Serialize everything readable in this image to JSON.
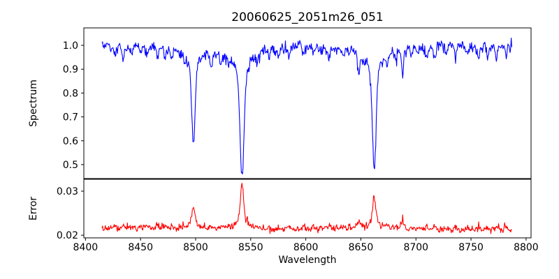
{
  "figure": {
    "title": "20060625_2051m26_051",
    "background": "#ffffff",
    "text_color": "#000000"
  },
  "chart_data": {
    "type": "line",
    "title": "20060625_2051m26_051",
    "xlabel": "Wavelength",
    "xlim": [
      8398.5,
      8804.5
    ],
    "xticks": [
      8400,
      8450,
      8500,
      8550,
      8600,
      8650,
      8700,
      8750,
      8800
    ],
    "x_data_range": [
      8415,
      8787
    ],
    "sample_step_angstrom": 0.5,
    "grid": false,
    "legend": "none",
    "panels": [
      {
        "name": "spectrum",
        "ylabel": "Spectrum",
        "color": "#0000ff",
        "ylim": [
          0.4415,
          1.0731
        ],
        "yticks": [
          0.5,
          0.6,
          0.7,
          0.8,
          0.9,
          1.0
        ],
        "continuum_level": 1.0,
        "noise_sigma": 0.01
      },
      {
        "name": "error",
        "ylabel": "Error",
        "color": "#ff0000",
        "ylim": [
          0.0194,
          0.0327
        ],
        "yticks": [
          0.02,
          0.03
        ],
        "baseline_level": 0.0213,
        "noise_sigma": 0.00035
      }
    ],
    "absorption_lines": [
      {
        "wavelength": 8498.0,
        "depth": 0.405,
        "core_width": 1.5,
        "wing_width": 7,
        "min_flux": 0.595,
        "error_peak_height": 0.0053,
        "error_peak_value": 0.0266
      },
      {
        "wavelength": 8542.1,
        "depth": 0.545,
        "core_width": 1.8,
        "wing_width": 9,
        "min_flux": 0.455,
        "error_peak_height": 0.0106,
        "error_peak_value": 0.0319
      },
      {
        "wavelength": 8662.1,
        "depth": 0.51,
        "core_width": 1.6,
        "wing_width": 8,
        "min_flux": 0.49,
        "error_peak_height": 0.0075,
        "error_peak_value": 0.0288
      }
    ],
    "minor_lines": [
      [
        8427,
        0.045
      ],
      [
        8434,
        0.055
      ],
      [
        8442,
        0.035
      ],
      [
        8450,
        0.03
      ],
      [
        8456,
        0.04
      ],
      [
        8465,
        0.055
      ],
      [
        8472,
        0.04
      ],
      [
        8478,
        0.035
      ],
      [
        8490,
        0.03
      ],
      [
        8514,
        0.06
      ],
      [
        8523,
        0.035
      ],
      [
        8530,
        0.03
      ],
      [
        8556,
        0.03
      ],
      [
        8567,
        0.035
      ],
      [
        8575,
        0.03
      ],
      [
        8585,
        0.045
      ],
      [
        8598,
        0.05
      ],
      [
        8607,
        0.035
      ],
      [
        8614,
        0.03
      ],
      [
        8621,
        0.045
      ],
      [
        8634,
        0.035
      ],
      [
        8648,
        0.1
      ],
      [
        8674,
        0.05
      ],
      [
        8682,
        0.04
      ],
      [
        8688,
        0.12
      ],
      [
        8696,
        0.035
      ],
      [
        8702,
        0.04
      ],
      [
        8710,
        0.05
      ],
      [
        8717,
        0.055
      ],
      [
        8728,
        0.04
      ],
      [
        8736,
        0.05
      ],
      [
        8747,
        0.04
      ],
      [
        8757,
        0.05
      ],
      [
        8765,
        0.04
      ],
      [
        8773,
        0.055
      ],
      [
        8782,
        0.04
      ]
    ],
    "seed": 20060625
  }
}
